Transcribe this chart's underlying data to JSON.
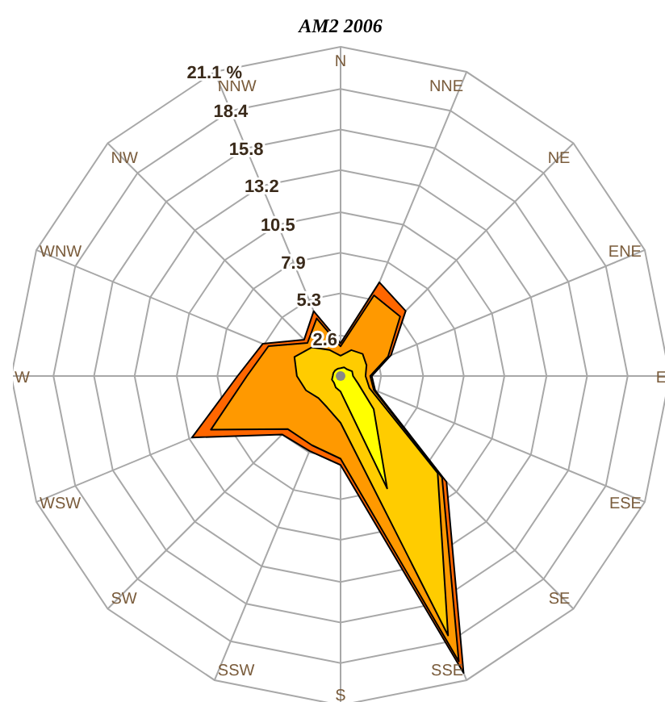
{
  "chart_data": {
    "type": "radar",
    "title": "AM2 2006",
    "grid": true,
    "categories": [
      "N",
      "NNE",
      "NE",
      "ENE",
      "E",
      "ESE",
      "SE",
      "SSE",
      "S",
      "SSW",
      "SW",
      "WSW",
      "W",
      "WNW",
      "NW",
      "NNW"
    ],
    "ylim": [
      0,
      21.1
    ],
    "yticks": [
      2.6,
      5.3,
      7.9,
      10.5,
      13.2,
      15.8,
      18.4,
      {
        "value": 21.1,
        "label": "21.1 %"
      }
    ],
    "series": [
      {
        "color": "#ffff00",
        "values": [
          0.5,
          0.6,
          0.6,
          0.8,
          0.8,
          1.2,
          3.0,
          7.8,
          1.0,
          0.8,
          0.6,
          0.6,
          0.5,
          0.5,
          0.5,
          0.5
        ]
      },
      {
        "color": "#ffcc00",
        "values": [
          1.3,
          1.8,
          2.0,
          1.8,
          1.6,
          2.0,
          8.8,
          18.0,
          3.0,
          2.2,
          2.0,
          2.4,
          2.8,
          3.2,
          2.6,
          1.8
        ]
      },
      {
        "color": "#ff9900",
        "values": [
          1.9,
          5.6,
          5.4,
          3.3,
          1.9,
          2.3,
          9.2,
          19.8,
          5.3,
          4.8,
          4.8,
          9.0,
          6.0,
          5.0,
          3.0,
          4.0
        ]
      },
      {
        "color": "#ff6600",
        "values": [
          2.1,
          6.5,
          5.9,
          3.5,
          2.0,
          2.4,
          9.6,
          20.6,
          5.7,
          5.2,
          5.3,
          10.3,
          6.6,
          5.4,
          3.3,
          4.5
        ]
      }
    ]
  }
}
